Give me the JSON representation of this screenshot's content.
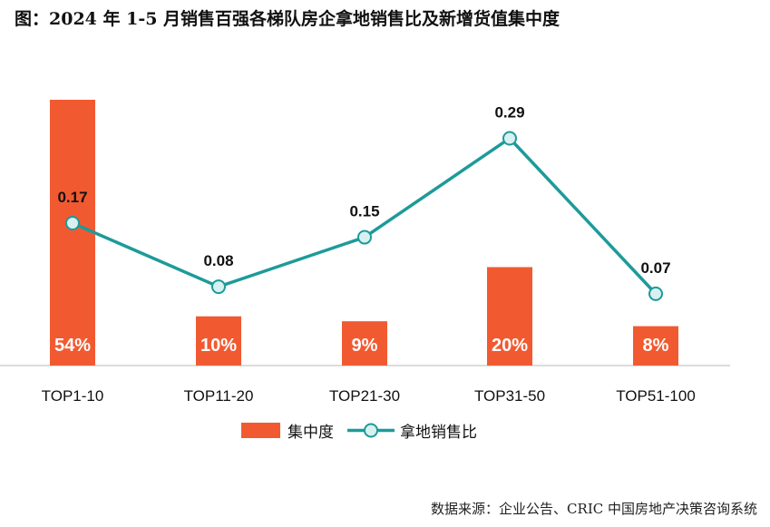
{
  "title": "图：2024 年 1-5 月销售百强各梯队房企拿地销售比及新增货值集中度",
  "source": "数据来源：企业公告、CRIC 中国房地产决策咨询系统",
  "colors": {
    "bar": "#F15A31",
    "line": "#1E9A9A",
    "marker_fill": "#D8F1F0",
    "axis": "#C8C8C8",
    "text": "#111111"
  },
  "chart_data": {
    "type": "bar",
    "categories": [
      "TOP1-10",
      "TOP11-20",
      "TOP21-30",
      "TOP31-50",
      "TOP51-100"
    ],
    "series": [
      {
        "name": "集中度",
        "type": "bar",
        "values": [
          54,
          10,
          9,
          20,
          8
        ],
        "labels": [
          "54%",
          "10%",
          "9%",
          "20%",
          "8%"
        ]
      },
      {
        "name": "拿地销售比",
        "type": "line",
        "values": [
          0.17,
          0.08,
          0.15,
          0.29,
          0.07
        ],
        "labels": [
          "0.17",
          "0.08",
          "0.15",
          "0.29",
          "0.07"
        ]
      }
    ],
    "legend": "bottom",
    "grid": false
  }
}
